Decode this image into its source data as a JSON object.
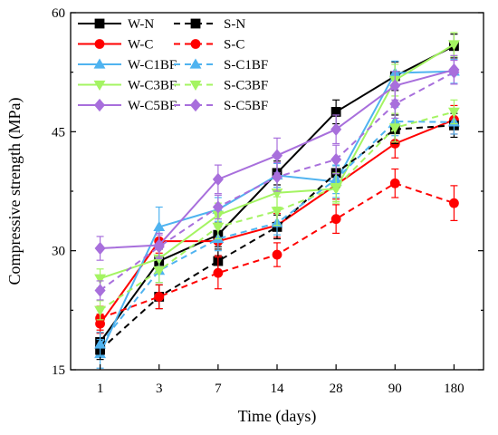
{
  "chart_data": {
    "type": "line",
    "xlabel": "Time (days)",
    "ylabel": "Compressive strength (MPa)",
    "categories": [
      "1",
      "3",
      "7",
      "14",
      "28",
      "90",
      "180"
    ],
    "ylim": [
      15,
      60
    ],
    "yticks": [
      15,
      30,
      45,
      60
    ],
    "legend_position": "top-left",
    "series": [
      {
        "name": "W-N",
        "color": "#000000",
        "dashed": false,
        "marker": "square",
        "values": [
          18.5,
          28.7,
          32.0,
          39.8,
          47.5,
          52.0,
          55.8
        ],
        "errors": [
          1.2,
          1.5,
          1.5,
          1.5,
          1.5,
          1.8,
          1.5
        ]
      },
      {
        "name": "W-C",
        "color": "#ff0000",
        "dashed": false,
        "marker": "circle",
        "values": [
          20.8,
          31.2,
          31.2,
          33.2,
          38.3,
          43.5,
          46.5
        ],
        "errors": [
          1.2,
          1.5,
          1.8,
          1.5,
          1.8,
          1.8,
          1.8
        ]
      },
      {
        "name": "W-C1BF",
        "color": "#4fb3f0",
        "dashed": false,
        "marker": "triangle-up",
        "values": [
          17.0,
          33.0,
          35.2,
          39.5,
          38.7,
          52.4,
          52.6
        ],
        "errors": [
          1.8,
          2.5,
          1.5,
          1.5,
          2.0,
          1.5,
          1.5
        ]
      },
      {
        "name": "W-C3BF",
        "color": "#a4f462",
        "dashed": false,
        "marker": "triangle-down",
        "values": [
          26.5,
          29.0,
          34.5,
          37.3,
          37.8,
          51.5,
          56.0
        ],
        "errors": [
          1.2,
          1.5,
          1.5,
          1.8,
          1.8,
          2.0,
          1.5
        ]
      },
      {
        "name": "W-C5BF",
        "color": "#a86fdc",
        "dashed": false,
        "marker": "diamond",
        "values": [
          30.3,
          30.7,
          39.0,
          42.0,
          45.3,
          50.8,
          52.8
        ],
        "errors": [
          1.5,
          1.5,
          1.8,
          2.2,
          1.8,
          1.8,
          1.8
        ]
      },
      {
        "name": "S-N",
        "color": "#000000",
        "dashed": true,
        "marker": "square",
        "values": [
          17.5,
          24.2,
          28.7,
          33.0,
          39.8,
          45.3,
          45.8
        ],
        "errors": [
          1.2,
          1.5,
          1.5,
          1.5,
          1.8,
          1.8,
          1.5
        ]
      },
      {
        "name": "S-C",
        "color": "#ff0000",
        "dashed": true,
        "marker": "circle",
        "values": [
          21.5,
          24.2,
          27.2,
          29.5,
          34.0,
          38.5,
          36.0
        ],
        "errors": [
          1.5,
          1.5,
          2.0,
          1.5,
          1.8,
          1.8,
          2.2
        ]
      },
      {
        "name": "S-C1BF",
        "color": "#4fb3f0",
        "dashed": true,
        "marker": "triangle-up",
        "values": [
          18.2,
          27.5,
          31.5,
          33.5,
          39.0,
          46.3,
          46.2
        ],
        "errors": [
          1.5,
          1.5,
          1.5,
          1.5,
          1.8,
          1.8,
          1.5
        ]
      },
      {
        "name": "S-C3BF",
        "color": "#a4f462",
        "dashed": true,
        "marker": "triangle-down",
        "values": [
          22.5,
          27.5,
          33.0,
          35.0,
          38.0,
          45.5,
          47.5
        ],
        "errors": [
          1.2,
          1.5,
          1.5,
          1.8,
          1.8,
          1.8,
          1.5
        ]
      },
      {
        "name": "S-C5BF",
        "color": "#a86fdc",
        "dashed": true,
        "marker": "diamond",
        "values": [
          25.0,
          30.5,
          35.5,
          39.3,
          41.5,
          48.5,
          52.5
        ],
        "errors": [
          1.2,
          1.5,
          1.5,
          1.8,
          1.8,
          1.8,
          1.5
        ]
      }
    ]
  }
}
